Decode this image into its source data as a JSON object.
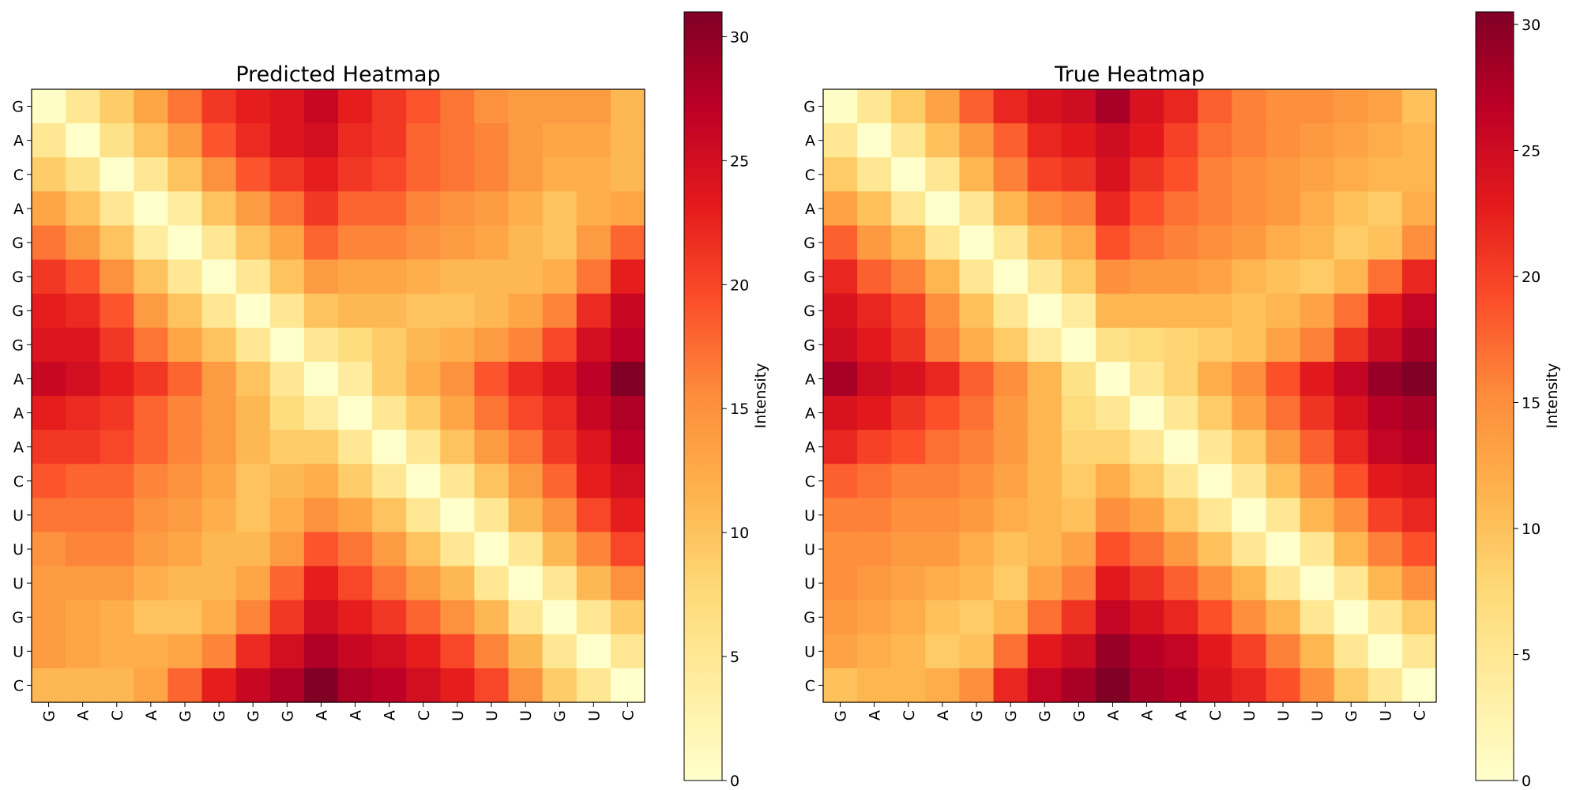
{
  "chart_data": [
    {
      "type": "heatmap",
      "title": "Predicted Heatmap",
      "x_labels": [
        "G",
        "A",
        "C",
        "A",
        "G",
        "G",
        "G",
        "G",
        "A",
        "A",
        "A",
        "C",
        "U",
        "U",
        "U",
        "G",
        "U",
        "C"
      ],
      "y_labels": [
        "G",
        "A",
        "C",
        "A",
        "G",
        "G",
        "G",
        "G",
        "A",
        "A",
        "A",
        "C",
        "U",
        "U",
        "U",
        "G",
        "U",
        "C"
      ],
      "colorbar": {
        "label": "Intensity",
        "ticks": [
          0,
          5,
          10,
          15,
          20,
          25,
          30
        ],
        "range": [
          0,
          31
        ],
        "colormap": "YlOrRd"
      },
      "values": [
        [
          0.5,
          5,
          9,
          13,
          17,
          21,
          23,
          24,
          26,
          23,
          21,
          19,
          17,
          15,
          14,
          14,
          14,
          11
        ],
        [
          5,
          0,
          6,
          10,
          14,
          19,
          22,
          24,
          25,
          22,
          21,
          18,
          17,
          16,
          14,
          13,
          13,
          11
        ],
        [
          9,
          6,
          0,
          5,
          10,
          15,
          19,
          21,
          23,
          21,
          20,
          18,
          17,
          16,
          14,
          12,
          12,
          11
        ],
        [
          13,
          10,
          5,
          0,
          4,
          10,
          14,
          17,
          21,
          18,
          18,
          16,
          15,
          14,
          12,
          10,
          12,
          13
        ],
        [
          17,
          14,
          10,
          4,
          0,
          5,
          10,
          13,
          18,
          16,
          16,
          15,
          14,
          13,
          11,
          10,
          14,
          18
        ],
        [
          21,
          19,
          15,
          10,
          5,
          0,
          5,
          10,
          14,
          13,
          13,
          12,
          11,
          11,
          11,
          12,
          17,
          23
        ],
        [
          23,
          22,
          19,
          14,
          10,
          5,
          0,
          5,
          10,
          11,
          11,
          10,
          10,
          11,
          13,
          16,
          22,
          26
        ],
        [
          24,
          24,
          21,
          17,
          13,
          10,
          5,
          0,
          5,
          7,
          9,
          11,
          12,
          14,
          16,
          20,
          25,
          27
        ],
        [
          26,
          25,
          23,
          21,
          18,
          14,
          10,
          5,
          0,
          4,
          9,
          12,
          15,
          19,
          22,
          24,
          27,
          31
        ],
        [
          23,
          22,
          21,
          18,
          16,
          14,
          11,
          7,
          4,
          0,
          5,
          9,
          13,
          17,
          20,
          22,
          26,
          28
        ],
        [
          21,
          21,
          20,
          18,
          16,
          14,
          11,
          9,
          9,
          5,
          0,
          5,
          10,
          14,
          17,
          21,
          24,
          27
        ],
        [
          19,
          18,
          18,
          16,
          15,
          13,
          10,
          11,
          12,
          9,
          5,
          0,
          5,
          10,
          14,
          18,
          23,
          25
        ],
        [
          17,
          17,
          17,
          15,
          14,
          12,
          10,
          12,
          15,
          13,
          10,
          5,
          0,
          5,
          11,
          15,
          20,
          23
        ],
        [
          15,
          16,
          16,
          14,
          13,
          11,
          11,
          14,
          19,
          17,
          14,
          10,
          5,
          0,
          5,
          11,
          16,
          20
        ],
        [
          14,
          14,
          14,
          12,
          11,
          11,
          13,
          18,
          23,
          20,
          17,
          14,
          11,
          5,
          0,
          5,
          11,
          15
        ],
        [
          14,
          13,
          12,
          10,
          10,
          12,
          16,
          21,
          25,
          23,
          21,
          18,
          15,
          11,
          5,
          0,
          5,
          9
        ],
        [
          14,
          13,
          12,
          12,
          13,
          16,
          22,
          25,
          28,
          26,
          25,
          23,
          20,
          16,
          11,
          5,
          0,
          5
        ],
        [
          11,
          11,
          11,
          13,
          18,
          23,
          26,
          28,
          31,
          28,
          27,
          25,
          23,
          20,
          15,
          9,
          5,
          0
        ]
      ]
    },
    {
      "type": "heatmap",
      "title": "True Heatmap",
      "x_labels": [
        "G",
        "A",
        "C",
        "A",
        "G",
        "G",
        "G",
        "G",
        "A",
        "A",
        "A",
        "C",
        "U",
        "U",
        "U",
        "G",
        "U",
        "C"
      ],
      "y_labels": [
        "G",
        "A",
        "C",
        "A",
        "G",
        "G",
        "G",
        "G",
        "A",
        "A",
        "A",
        "C",
        "U",
        "U",
        "U",
        "G",
        "U",
        "C"
      ],
      "colorbar": {
        "label": "Intensity",
        "ticks": [
          0,
          5,
          10,
          15,
          20,
          25,
          30
        ],
        "range": [
          0,
          30.5
        ],
        "colormap": "YlOrRd"
      },
      "values": [
        [
          0.5,
          5,
          9,
          13,
          18,
          22,
          24,
          25,
          28,
          24,
          22,
          18,
          16,
          15,
          15,
          14,
          13,
          10
        ],
        [
          5,
          0,
          5,
          10,
          14,
          18,
          22,
          23,
          25,
          23,
          20,
          17,
          16,
          15,
          14,
          13,
          12,
          11
        ],
        [
          9,
          5,
          0,
          5,
          11,
          16,
          20,
          21,
          24,
          21,
          19,
          16,
          15,
          14,
          13,
          12,
          11,
          11
        ],
        [
          13,
          10,
          5,
          0,
          5,
          11,
          15,
          16,
          22,
          19,
          17,
          16,
          15,
          14,
          12,
          10,
          9,
          12
        ],
        [
          18,
          14,
          11,
          5,
          0,
          5,
          10,
          12,
          19,
          17,
          16,
          15,
          14,
          12,
          11,
          9,
          10,
          15
        ],
        [
          22,
          18,
          16,
          11,
          5,
          0,
          5,
          9,
          15,
          14,
          14,
          13,
          11,
          10,
          9,
          11,
          17,
          22
        ],
        [
          24,
          22,
          20,
          15,
          10,
          5,
          0,
          4,
          11,
          11,
          11,
          11,
          10,
          11,
          13,
          17,
          23,
          26
        ],
        [
          25,
          23,
          21,
          16,
          12,
          9,
          4,
          0,
          6,
          7,
          8,
          9,
          10,
          13,
          16,
          21,
          25,
          28
        ],
        [
          28,
          25,
          24,
          22,
          18,
          15,
          11,
          6,
          0,
          5,
          8,
          12,
          15,
          19,
          23,
          26,
          29,
          30.5
        ],
        [
          24,
          23,
          21,
          19,
          17,
          14,
          11,
          7,
          5,
          0,
          5,
          9,
          13,
          17,
          21,
          24,
          27,
          28
        ],
        [
          22,
          20,
          19,
          17,
          16,
          14,
          11,
          8,
          8,
          5,
          0,
          5,
          9,
          14,
          18,
          22,
          26,
          27
        ],
        [
          18,
          17,
          16,
          16,
          15,
          13,
          11,
          9,
          12,
          9,
          5,
          0,
          5,
          10,
          15,
          19,
          23,
          24
        ],
        [
          16,
          16,
          15,
          15,
          14,
          12,
          11,
          10,
          15,
          13,
          9,
          5,
          0,
          5,
          11,
          15,
          20,
          22
        ],
        [
          15,
          15,
          14,
          14,
          12,
          10,
          11,
          13,
          19,
          17,
          14,
          10,
          5,
          0,
          5,
          11,
          16,
          19
        ],
        [
          15,
          14,
          13,
          12,
          11,
          9,
          13,
          16,
          23,
          21,
          18,
          15,
          11,
          5,
          0,
          5,
          11,
          15
        ],
        [
          14,
          13,
          12,
          10,
          9,
          11,
          17,
          21,
          26,
          24,
          22,
          19,
          15,
          11,
          5,
          0,
          5,
          9
        ],
        [
          13,
          12,
          11,
          9,
          10,
          17,
          23,
          25,
          29,
          27,
          26,
          23,
          20,
          16,
          11,
          5,
          0,
          5
        ],
        [
          10,
          11,
          11,
          12,
          15,
          22,
          26,
          28,
          30.5,
          28,
          27,
          24,
          22,
          19,
          15,
          9,
          5,
          0
        ]
      ]
    }
  ]
}
